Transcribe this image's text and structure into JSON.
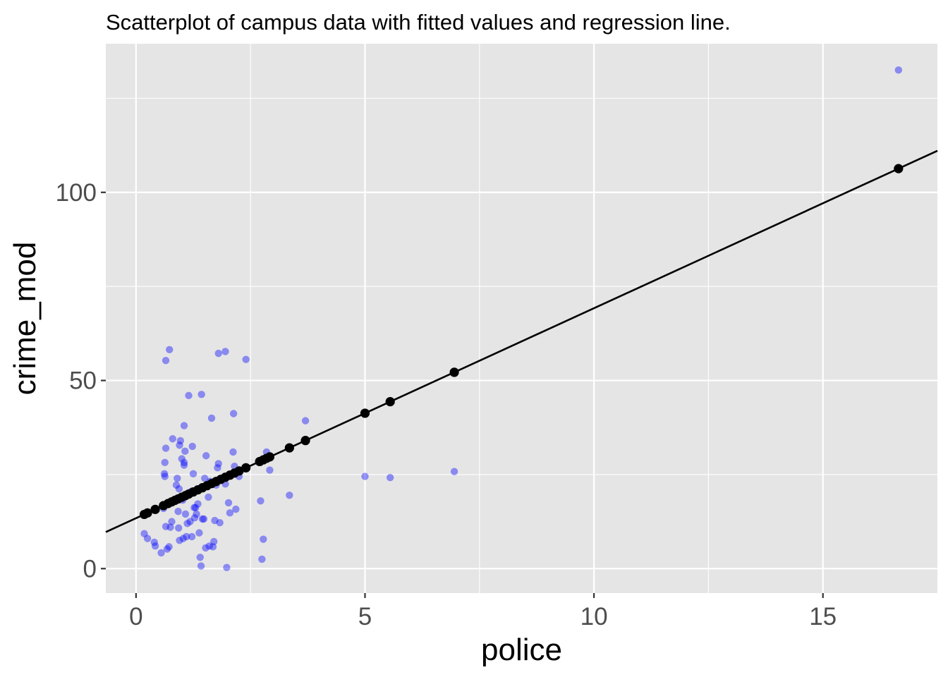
{
  "chart_data": {
    "type": "scatter",
    "title": "Scatterplot of campus data with fitted values and regression line.",
    "xlabel": "police",
    "ylabel": "crime_mod",
    "xlim": [
      -0.66,
      17.5
    ],
    "ylim": [
      -6.5,
      139.5
    ],
    "x_ticks": [
      0,
      5,
      10,
      15
    ],
    "x_tick_labels": [
      "0",
      "5",
      "10",
      "15"
    ],
    "y_ticks": [
      0,
      50,
      100
    ],
    "y_tick_labels": [
      "0",
      "50",
      "100"
    ],
    "x_minor_ticks": [
      2.5,
      7.5,
      12.5
    ],
    "y_minor_ticks": [
      25,
      75,
      125
    ],
    "grid": true,
    "panel_background": "#e5e5e5",
    "regression": {
      "intercept": 13.4,
      "slope": 5.58,
      "color": "#000000"
    },
    "series": [
      {
        "role": "observed",
        "color": "#0000ff",
        "opacity": 0.4,
        "points": [
          [
            0.18,
            9.3
          ],
          [
            0.25,
            8.0
          ],
          [
            0.4,
            7.0
          ],
          [
            0.42,
            6.0
          ],
          [
            0.55,
            4.2
          ],
          [
            0.6,
            16.0
          ],
          [
            0.65,
            11.2
          ],
          [
            0.68,
            5.2
          ],
          [
            0.72,
            5.8
          ],
          [
            0.75,
            11.0
          ],
          [
            0.78,
            12.5
          ],
          [
            0.62,
            25.2
          ],
          [
            0.63,
            24.5
          ],
          [
            0.63,
            28.2
          ],
          [
            0.65,
            32.0
          ],
          [
            0.65,
            55.3
          ],
          [
            0.73,
            58.2
          ],
          [
            0.8,
            34.5
          ],
          [
            0.88,
            22.2
          ],
          [
            0.9,
            24.0
          ],
          [
            0.92,
            15.2
          ],
          [
            0.93,
            10.8
          ],
          [
            0.94,
            21.2
          ],
          [
            0.95,
            7.5
          ],
          [
            0.95,
            32.8
          ],
          [
            0.97,
            34.0
          ],
          [
            1.0,
            29.2
          ],
          [
            1.02,
            18.2
          ],
          [
            1.03,
            8.0
          ],
          [
            1.05,
            38.0
          ],
          [
            1.05,
            27.5
          ],
          [
            1.05,
            28.2
          ],
          [
            1.07,
            31.2
          ],
          [
            1.08,
            14.5
          ],
          [
            1.1,
            8.5
          ],
          [
            1.12,
            12.0
          ],
          [
            1.13,
            19.8
          ],
          [
            1.15,
            46.0
          ],
          [
            1.18,
            12.5
          ],
          [
            1.2,
            20.5
          ],
          [
            1.22,
            8.5
          ],
          [
            1.23,
            32.5
          ],
          [
            1.25,
            25.2
          ],
          [
            1.27,
            16.2
          ],
          [
            1.28,
            13.5
          ],
          [
            1.3,
            16.2
          ],
          [
            1.32,
            14.5
          ],
          [
            1.35,
            17.2
          ],
          [
            1.38,
            9.5
          ],
          [
            1.4,
            3.0
          ],
          [
            1.42,
            0.7
          ],
          [
            1.43,
            46.3
          ],
          [
            1.45,
            13.2
          ],
          [
            1.48,
            13.2
          ],
          [
            1.5,
            24.0
          ],
          [
            1.52,
            5.5
          ],
          [
            1.53,
            30.0
          ],
          [
            1.58,
            19.0
          ],
          [
            1.6,
            6.0
          ],
          [
            1.62,
            23.2
          ],
          [
            1.65,
            40.0
          ],
          [
            1.68,
            5.8
          ],
          [
            1.7,
            7.2
          ],
          [
            1.72,
            12.8
          ],
          [
            1.75,
            22.2
          ],
          [
            1.78,
            26.8
          ],
          [
            1.8,
            27.9
          ],
          [
            1.8,
            57.2
          ],
          [
            1.83,
            12.2
          ],
          [
            1.95,
            57.7
          ],
          [
            1.95,
            22.5
          ],
          [
            1.98,
            0.3
          ],
          [
            2.02,
            17.5
          ],
          [
            2.05,
            14.8
          ],
          [
            2.12,
            31.0
          ],
          [
            2.13,
            41.2
          ],
          [
            2.15,
            27.2
          ],
          [
            2.18,
            15.8
          ],
          [
            2.25,
            24.5
          ],
          [
            2.4,
            55.6
          ],
          [
            2.72,
            18.0
          ],
          [
            2.75,
            2.5
          ],
          [
            2.78,
            7.8
          ],
          [
            2.85,
            31.0
          ],
          [
            2.92,
            26.2
          ],
          [
            3.35,
            19.5
          ],
          [
            3.7,
            39.3
          ],
          [
            5.0,
            24.5
          ],
          [
            5.55,
            24.2
          ],
          [
            6.95,
            25.8
          ],
          [
            16.65,
            132.5
          ]
        ]
      },
      {
        "role": "fitted",
        "color": "#000000",
        "opacity": 1,
        "x": [
          0.18,
          0.25,
          0.42,
          0.6,
          0.7,
          0.78,
          0.85,
          0.92,
          1.0,
          1.08,
          1.15,
          1.25,
          1.35,
          1.45,
          1.55,
          1.65,
          1.75,
          1.85,
          1.95,
          2.05,
          2.15,
          2.25,
          2.4,
          2.7,
          2.78,
          2.85,
          2.92,
          3.35,
          3.7,
          5.0,
          5.55,
          6.95,
          16.65
        ]
      }
    ]
  }
}
